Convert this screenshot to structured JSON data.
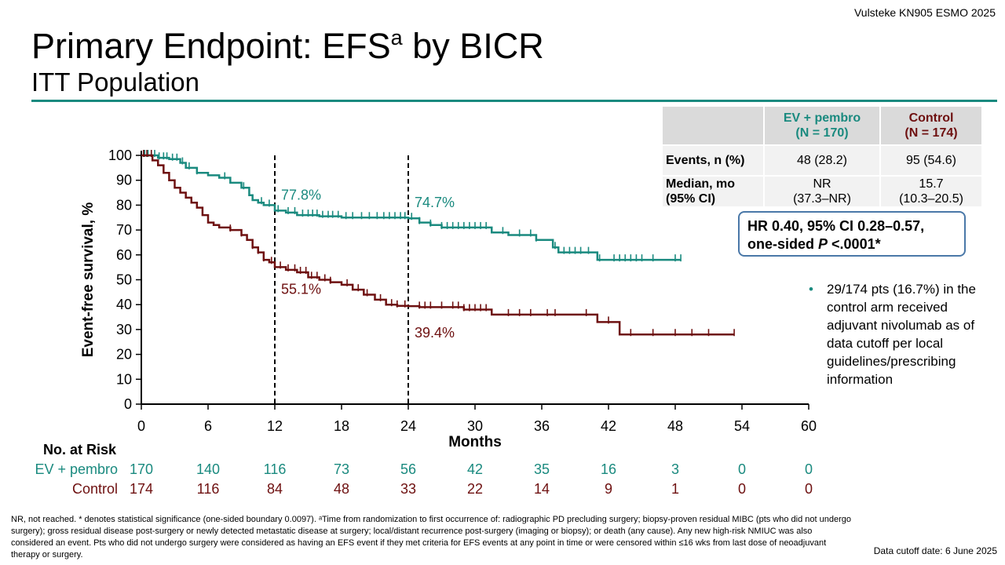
{
  "header": {
    "citation": "Vulsteke KN905 ESMO 2025",
    "title_main": "Primary Endpoint: EFS",
    "title_sup": "a",
    "title_rest": " by BICR",
    "subtitle": "ITT Population"
  },
  "colors": {
    "ev_pembro": "#1a8a7f",
    "control": "#6e1010",
    "rule": "#1a8a7f",
    "box_border": "#4a78a8"
  },
  "results_table": {
    "col_ev_line1": "EV + pembro",
    "col_ev_line2": "(N = 170)",
    "col_ctl_line1": "Control",
    "col_ctl_line2": "(N = 174)",
    "rows": [
      {
        "label_line1": "Events, n (%)",
        "label_line2": "",
        "ev_line1": "48 (28.2)",
        "ev_line2": "",
        "ctl_line1": "95 (54.6)",
        "ctl_line2": ""
      },
      {
        "label_line1": "Median, mo",
        "label_line2": "(95% CI)",
        "ev_line1": "NR",
        "ev_line2": "(37.3–NR)",
        "ctl_line1": "15.7",
        "ctl_line2": "(10.3–20.5)"
      }
    ]
  },
  "hazard_ratio": {
    "line1": "HR 0.40, 95% CI 0.28–0.57,",
    "line2_pre": "one-sided ",
    "line2_p": "P",
    "line2_post": " <.0001*"
  },
  "note": {
    "bullet": "•",
    "text": "29/174 pts (16.7%) in the control arm received adjuvant nivolumab as of data cutoff per local guidelines/prescribing information"
  },
  "footnote": "NR, not reached. * denotes statistical significance (one-sided boundary 0.0097). ᵃTime from randomization to first occurrence of: radiographic PD precluding surgery; biopsy-proven residual MIBC (pts who did not undergo surgery); gross residual disease post-surgery or newly detected metastatic disease at surgery; local/distant recurrence post-surgery (imaging or biopsy); or death (any cause). Any new high-risk NMIUC was also considered an event. Pts who did not undergo surgery were considered as having an EFS event if they met criteria for EFS events at any point in time or were censored within ≤16 wks from last dose of neoadjuvant therapy or surgery.",
  "cutoff": "Data cutoff date: 6 June 2025",
  "chart_data": {
    "type": "line",
    "subtype": "kaplan-meier",
    "xlabel": "Months",
    "ylabel": "Event-free survival, %",
    "xlim": [
      0,
      60
    ],
    "ylim": [
      0,
      100
    ],
    "x_ticks": [
      0,
      6,
      12,
      18,
      24,
      30,
      36,
      42,
      48,
      54,
      60
    ],
    "y_ticks": [
      0,
      10,
      20,
      30,
      40,
      50,
      60,
      70,
      80,
      90,
      100
    ],
    "reference_lines_x": [
      12,
      24
    ],
    "series": [
      {
        "name": "EV + pembro",
        "color": "#1a8a7f",
        "points": [
          [
            0,
            100
          ],
          [
            1.5,
            99
          ],
          [
            2.5,
            98.5
          ],
          [
            3.5,
            97
          ],
          [
            4,
            95
          ],
          [
            5,
            93
          ],
          [
            6,
            92
          ],
          [
            7,
            91
          ],
          [
            8,
            89
          ],
          [
            9,
            87
          ],
          [
            9.7,
            84
          ],
          [
            10,
            82
          ],
          [
            10.5,
            81
          ],
          [
            11,
            80
          ],
          [
            12,
            77.8
          ],
          [
            13,
            77
          ],
          [
            14,
            76
          ],
          [
            16,
            75.5
          ],
          [
            18,
            75
          ],
          [
            23,
            75
          ],
          [
            24,
            74.7
          ],
          [
            25,
            73
          ],
          [
            26,
            72
          ],
          [
            27,
            71
          ],
          [
            28,
            71
          ],
          [
            31,
            71
          ],
          [
            31.5,
            69
          ],
          [
            32,
            69
          ],
          [
            33,
            68
          ],
          [
            35,
            68
          ],
          [
            35.5,
            66
          ],
          [
            36,
            66
          ],
          [
            37,
            63
          ],
          [
            37.5,
            61
          ],
          [
            38,
            61
          ],
          [
            40,
            61
          ],
          [
            41,
            58
          ],
          [
            45,
            58
          ],
          [
            48.5,
            58
          ]
        ],
        "censor_x": [
          0.3,
          0.6,
          0.9,
          1.2,
          1.6,
          2,
          2.3,
          2.8,
          3.2,
          3.7,
          4.3,
          5,
          7.5,
          9.2,
          10.8,
          11.5,
          12.3,
          13.2,
          13.8,
          14.5,
          15,
          15.4,
          15.8,
          16.3,
          16.8,
          17.2,
          17.7,
          18.4,
          19,
          19.8,
          20.5,
          21.2,
          21.8,
          22.3,
          22.8,
          23.3,
          23.7,
          24.3,
          25,
          26,
          27,
          27.5,
          28,
          28.5,
          29,
          29.5,
          30,
          30.5,
          31,
          32.5,
          34,
          35,
          35.5,
          37.2,
          38,
          38.5,
          39,
          39.5,
          40.2,
          41.2,
          42.5,
          43,
          43.5,
          44,
          44.5,
          45,
          46,
          48,
          48.5
        ],
        "landmarks": [
          {
            "x": 12,
            "value": 77.8,
            "label": "77.8%"
          },
          {
            "x": 24,
            "value": 74.7,
            "label": "74.7%"
          }
        ]
      },
      {
        "name": "Control",
        "color": "#6e1010",
        "points": [
          [
            0,
            100
          ],
          [
            1,
            98
          ],
          [
            1.5,
            96
          ],
          [
            2,
            93
          ],
          [
            2.5,
            90
          ],
          [
            3,
            87
          ],
          [
            3.5,
            85
          ],
          [
            4,
            83
          ],
          [
            4.5,
            81
          ],
          [
            5,
            79
          ],
          [
            5.5,
            76
          ],
          [
            6,
            73
          ],
          [
            6.5,
            72
          ],
          [
            7,
            71
          ],
          [
            8,
            70
          ],
          [
            9,
            68
          ],
          [
            9.5,
            66
          ],
          [
            10,
            63
          ],
          [
            10.5,
            61
          ],
          [
            11,
            58
          ],
          [
            11.5,
            57
          ],
          [
            12,
            55.1
          ],
          [
            13,
            54
          ],
          [
            14,
            53
          ],
          [
            15,
            51
          ],
          [
            16,
            50
          ],
          [
            17,
            49
          ],
          [
            18,
            48
          ],
          [
            19,
            46
          ],
          [
            20,
            44
          ],
          [
            21,
            42
          ],
          [
            22,
            40
          ],
          [
            23,
            39.5
          ],
          [
            24,
            39.4
          ],
          [
            25,
            39
          ],
          [
            29,
            38
          ],
          [
            31.5,
            36
          ],
          [
            34,
            36
          ],
          [
            40,
            36
          ],
          [
            41,
            33
          ],
          [
            42,
            33
          ],
          [
            43,
            28
          ],
          [
            53,
            28
          ],
          [
            53.3,
            28
          ]
        ],
        "censor_x": [
          0.2,
          0.5,
          0.9,
          8,
          9,
          10,
          10.5,
          11,
          11.7,
          12.5,
          13.2,
          13.8,
          14.3,
          14.8,
          15.3,
          15.8,
          16.5,
          17,
          18.5,
          19.5,
          20.3,
          21.5,
          22.5,
          23,
          23.7,
          25,
          25.5,
          26,
          27,
          28,
          28.5,
          29,
          29.5,
          30,
          30.5,
          31,
          33,
          34,
          35,
          36.5,
          37.2,
          40,
          42,
          44,
          46,
          48,
          49.5,
          51,
          53.3
        ],
        "landmarks": [
          {
            "x": 12,
            "value": 55.1,
            "label": "55.1%"
          },
          {
            "x": 24,
            "value": 39.4,
            "label": "39.4%"
          }
        ]
      }
    ],
    "risk_table": {
      "title": "No. at Risk",
      "rows": [
        {
          "name": "EV + pembro",
          "color": "#1a8a7f",
          "values": [
            170,
            140,
            116,
            73,
            56,
            42,
            35,
            16,
            3,
            0,
            0
          ]
        },
        {
          "name": "Control",
          "color": "#6e1010",
          "values": [
            174,
            116,
            84,
            48,
            33,
            22,
            14,
            9,
            1,
            0,
            0
          ]
        }
      ]
    }
  }
}
